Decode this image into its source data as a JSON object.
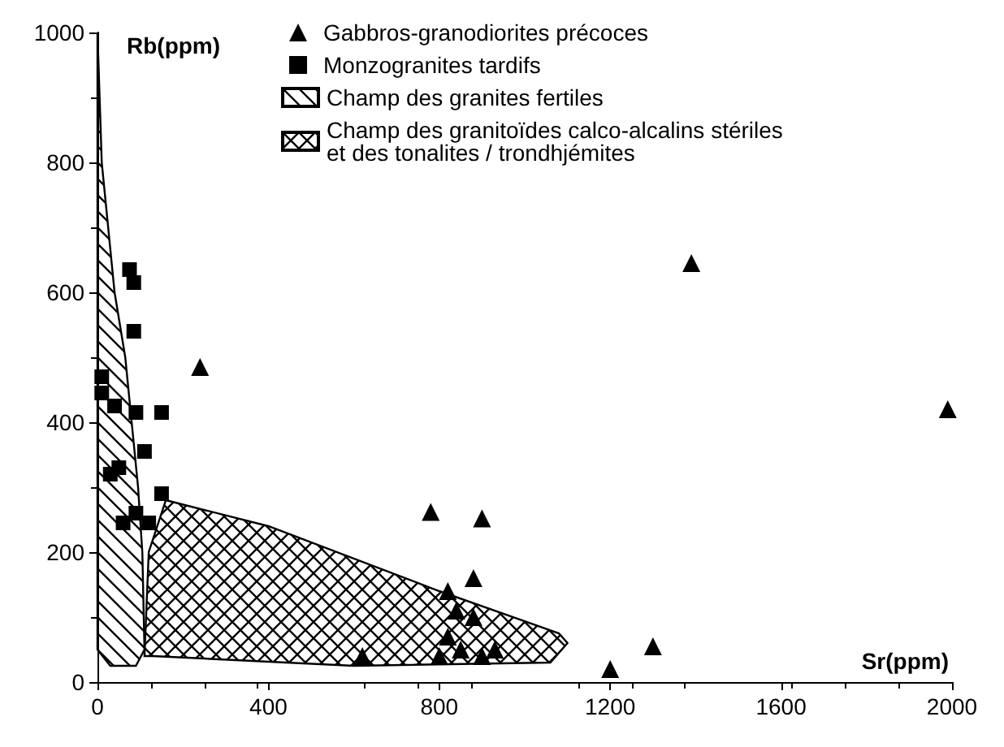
{
  "chart_data": {
    "type": "scatter",
    "xlabel": "Sr(ppm)",
    "ylabel": "Rb(ppm)",
    "xlim": [
      0,
      2000
    ],
    "ylim": [
      0,
      1000
    ],
    "xticks": [
      0,
      400,
      800,
      1200,
      1600,
      2000
    ],
    "yticks": [
      0,
      200,
      400,
      600,
      800,
      1000
    ],
    "grid": false,
    "legend": "top",
    "series": [
      {
        "name": "Gabbros-granodiorites précoces",
        "type": "scatter",
        "marker": "triangle",
        "color": "#000000",
        "x": [
          240,
          780,
          900,
          880,
          820,
          840,
          880,
          820,
          850,
          800,
          900,
          930,
          620,
          1200,
          1300,
          1390,
          1990
        ],
        "values": [
          485,
          262,
          252,
          160,
          140,
          110,
          100,
          70,
          50,
          40,
          40,
          50,
          40,
          20,
          55,
          645,
          420
        ]
      },
      {
        "name": "Monzogranites tardifs",
        "type": "scatter",
        "marker": "square",
        "color": "#000000",
        "x": [
          75,
          85,
          85,
          10,
          10,
          40,
          90,
          150,
          110,
          30,
          50,
          60,
          90,
          120,
          150
        ],
        "values": [
          635,
          615,
          540,
          470,
          445,
          425,
          415,
          415,
          355,
          320,
          330,
          245,
          260,
          245,
          290
        ]
      },
      {
        "name": "Champ des granites fertiles",
        "type": "area",
        "color": "#000000",
        "x": [
          0,
          10,
          40,
          65,
          80,
          95,
          105,
          110,
          90,
          30,
          0,
          0
        ],
        "values": [
          1000,
          800,
          600,
          500,
          400,
          300,
          200,
          50,
          25,
          25,
          50,
          1000
        ]
      },
      {
        "name": "Champ des granitoïdes calco-alcalins stériles\net des tonalites / trondhjémites",
        "type": "area",
        "color": "#000000",
        "x": [
          110,
          120,
          160,
          400,
          800,
          1080,
          1100,
          1060,
          600,
          130,
          110
        ],
        "values": [
          40,
          200,
          280,
          240,
          140,
          75,
          60,
          30,
          25,
          40,
          40
        ]
      }
    ]
  }
}
